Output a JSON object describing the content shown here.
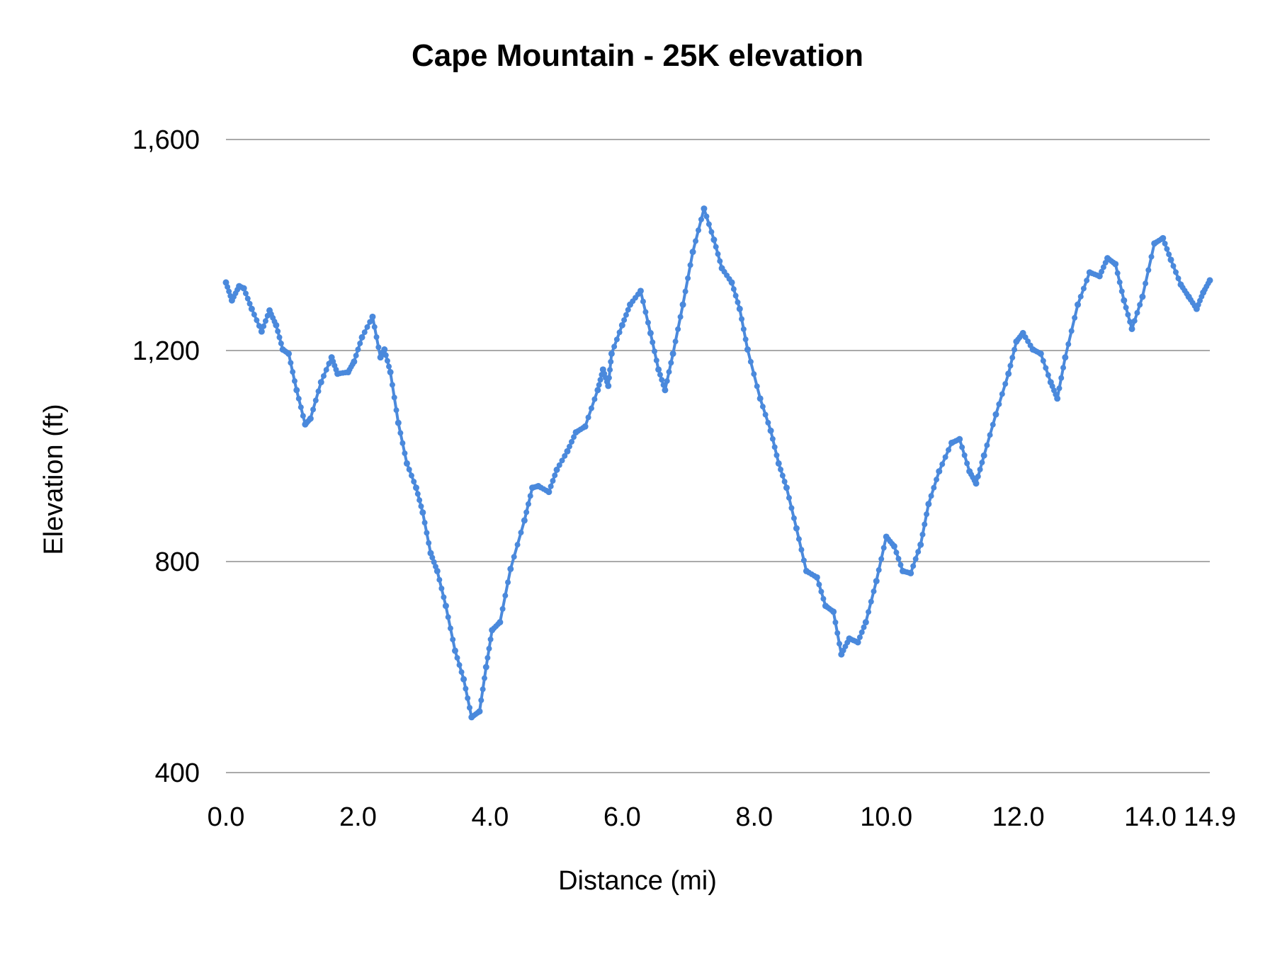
{
  "chart_data": {
    "type": "line",
    "title": "Cape Mountain - 25K elevation",
    "xlabel": "Distance (mi)",
    "ylabel": "Elevation (ft)",
    "xlim": [
      0,
      14.9
    ],
    "ylim": [
      400,
      1600
    ],
    "xticks": [
      "0.0",
      "2.0",
      "4.0",
      "6.0",
      "8.0",
      "10.0",
      "12.0",
      "14.0",
      "14.9"
    ],
    "yticks": [
      "400",
      "800",
      "1,200",
      "1,600"
    ],
    "grid": "horizontal",
    "markers": true,
    "color": "#4a89dc",
    "x": [
      0,
      0.09,
      0.2,
      0.27,
      0.39,
      0.54,
      0.66,
      0.76,
      0.86,
      0.95,
      1.07,
      1.2,
      1.28,
      1.44,
      1.6,
      1.69,
      1.85,
      1.94,
      2.06,
      2.22,
      2.34,
      2.4,
      2.49,
      2.61,
      2.74,
      2.88,
      2.98,
      3.1,
      3.2,
      3.33,
      3.47,
      3.6,
      3.72,
      3.84,
      3.94,
      4.03,
      4.15,
      4.31,
      4.52,
      4.64,
      4.73,
      4.89,
      5.01,
      5.17,
      5.3,
      5.44,
      5.63,
      5.71,
      5.79,
      5.84,
      6.0,
      6.12,
      6.28,
      6.43,
      6.55,
      6.65,
      6.77,
      6.92,
      7.07,
      7.24,
      7.39,
      7.51,
      7.66,
      7.78,
      7.9,
      8.09,
      8.25,
      8.37,
      8.49,
      8.64,
      8.79,
      8.95,
      9.08,
      9.2,
      9.32,
      9.44,
      9.57,
      9.69,
      9.85,
      10.0,
      10.12,
      10.25,
      10.37,
      10.52,
      10.64,
      10.8,
      10.99,
      11.11,
      11.26,
      11.36,
      11.48,
      11.66,
      11.85,
      11.97,
      12.07,
      12.22,
      12.34,
      12.49,
      12.59,
      12.71,
      12.9,
      13.08,
      13.23,
      13.35,
      13.47,
      13.6,
      13.72,
      13.88,
      14.06,
      14.19,
      14.31,
      14.46,
      14.58,
      14.7,
      14.8,
      14.9
    ],
    "y": [
      1329,
      1295,
      1322,
      1318,
      1279,
      1236,
      1276,
      1248,
      1202,
      1194,
      1125,
      1060,
      1071,
      1140,
      1187,
      1156,
      1159,
      1179,
      1225,
      1264,
      1187,
      1202,
      1159,
      1063,
      986,
      940,
      893,
      816,
      782,
      716,
      631,
      577,
      505,
      516,
      600,
      670,
      685,
      786,
      878,
      940,
      943,
      932,
      974,
      1009,
      1045,
      1056,
      1125,
      1164,
      1133,
      1194,
      1248,
      1287,
      1313,
      1233,
      1164,
      1125,
      1194,
      1287,
      1387,
      1469,
      1410,
      1356,
      1329,
      1279,
      1202,
      1109,
      1048,
      986,
      940,
      863,
      782,
      770,
      716,
      705,
      624,
      654,
      647,
      685,
      763,
      847,
      829,
      782,
      778,
      832,
      909,
      971,
      1025,
      1032,
      971,
      948,
      1001,
      1079,
      1156,
      1217,
      1233,
      1202,
      1194,
      1140,
      1109,
      1187,
      1287,
      1348,
      1341,
      1375,
      1364,
      1295,
      1241,
      1302,
      1403,
      1413,
      1372,
      1325,
      1302,
      1279,
      1310,
      1333
    ]
  }
}
